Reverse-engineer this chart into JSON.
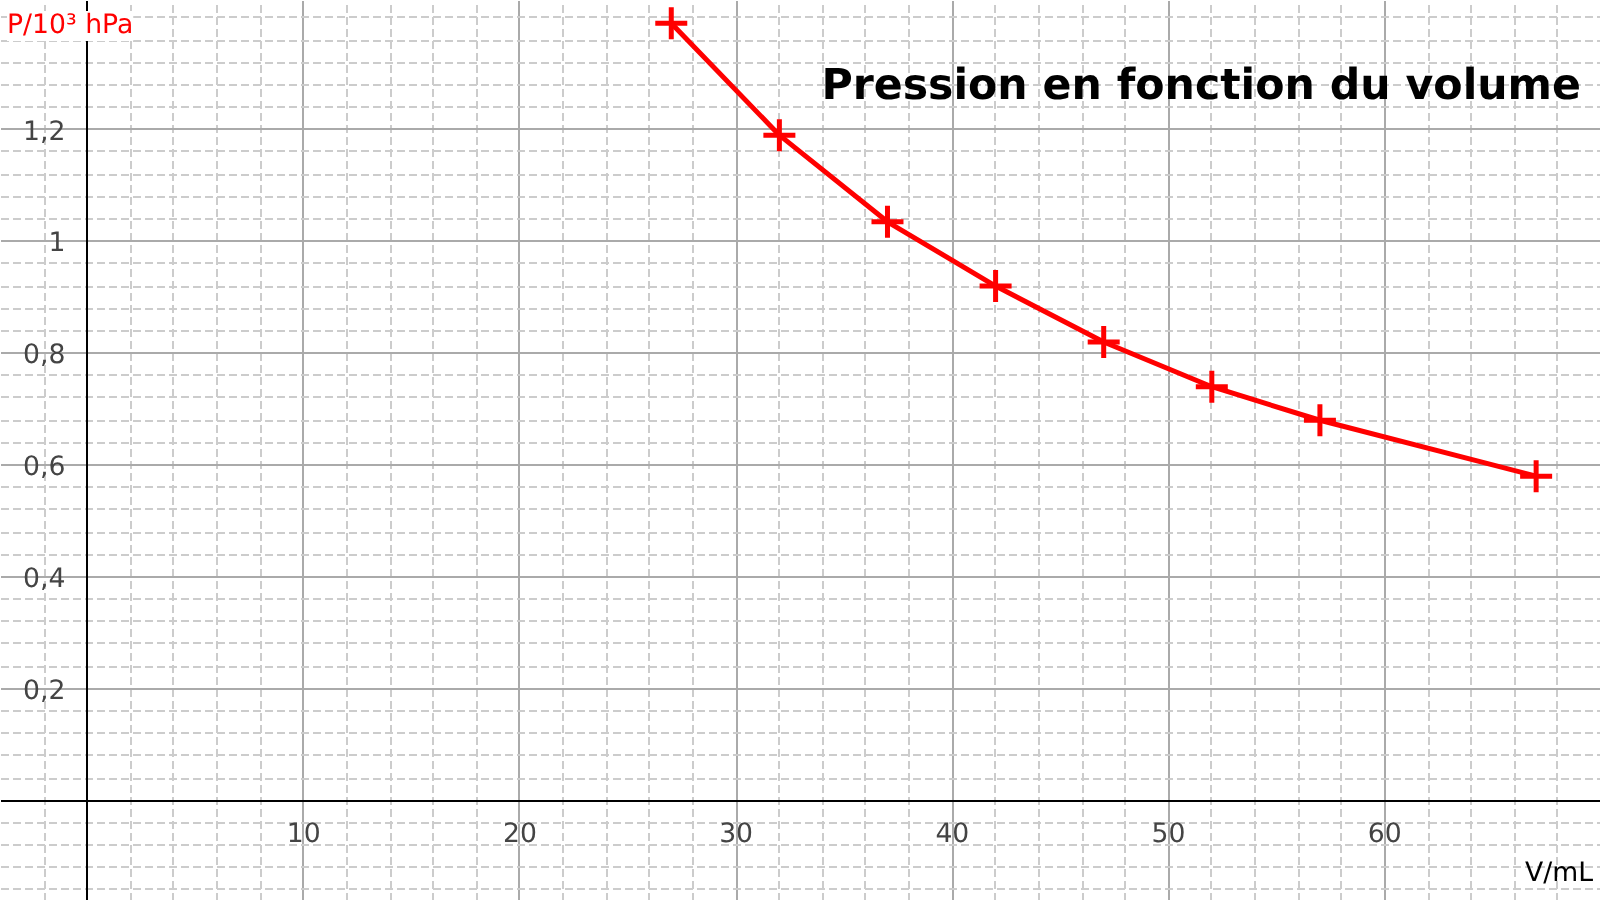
{
  "chart_data": {
    "type": "line",
    "title": "Pression en fonction du volume",
    "xlabel": "V/mL",
    "ylabel": "P/10³ hPa",
    "x": [
      27,
      32,
      37,
      42,
      47,
      52,
      57,
      67
    ],
    "series": [
      {
        "color": "#ff0000",
        "values": [
          1.39,
          1.19,
          1.035,
          0.92,
          0.82,
          0.74,
          0.68,
          0.58
        ]
      }
    ],
    "xlim": [
      -4,
      70
    ],
    "ylim": [
      -0.18,
      1.43
    ],
    "xticks": [
      10,
      20,
      30,
      40,
      50,
      60
    ],
    "yticks": [
      {
        "value": 0.2,
        "label": "0,2"
      },
      {
        "value": 0.4,
        "label": "0,4"
      },
      {
        "value": 0.6,
        "label": "0,6"
      },
      {
        "value": 0.8,
        "label": "0,8"
      },
      {
        "value": 1,
        "label": "1"
      },
      {
        "value": 1.2,
        "label": "1,2"
      }
    ],
    "grid": true,
    "marker": "cross",
    "line_style": "solid"
  }
}
